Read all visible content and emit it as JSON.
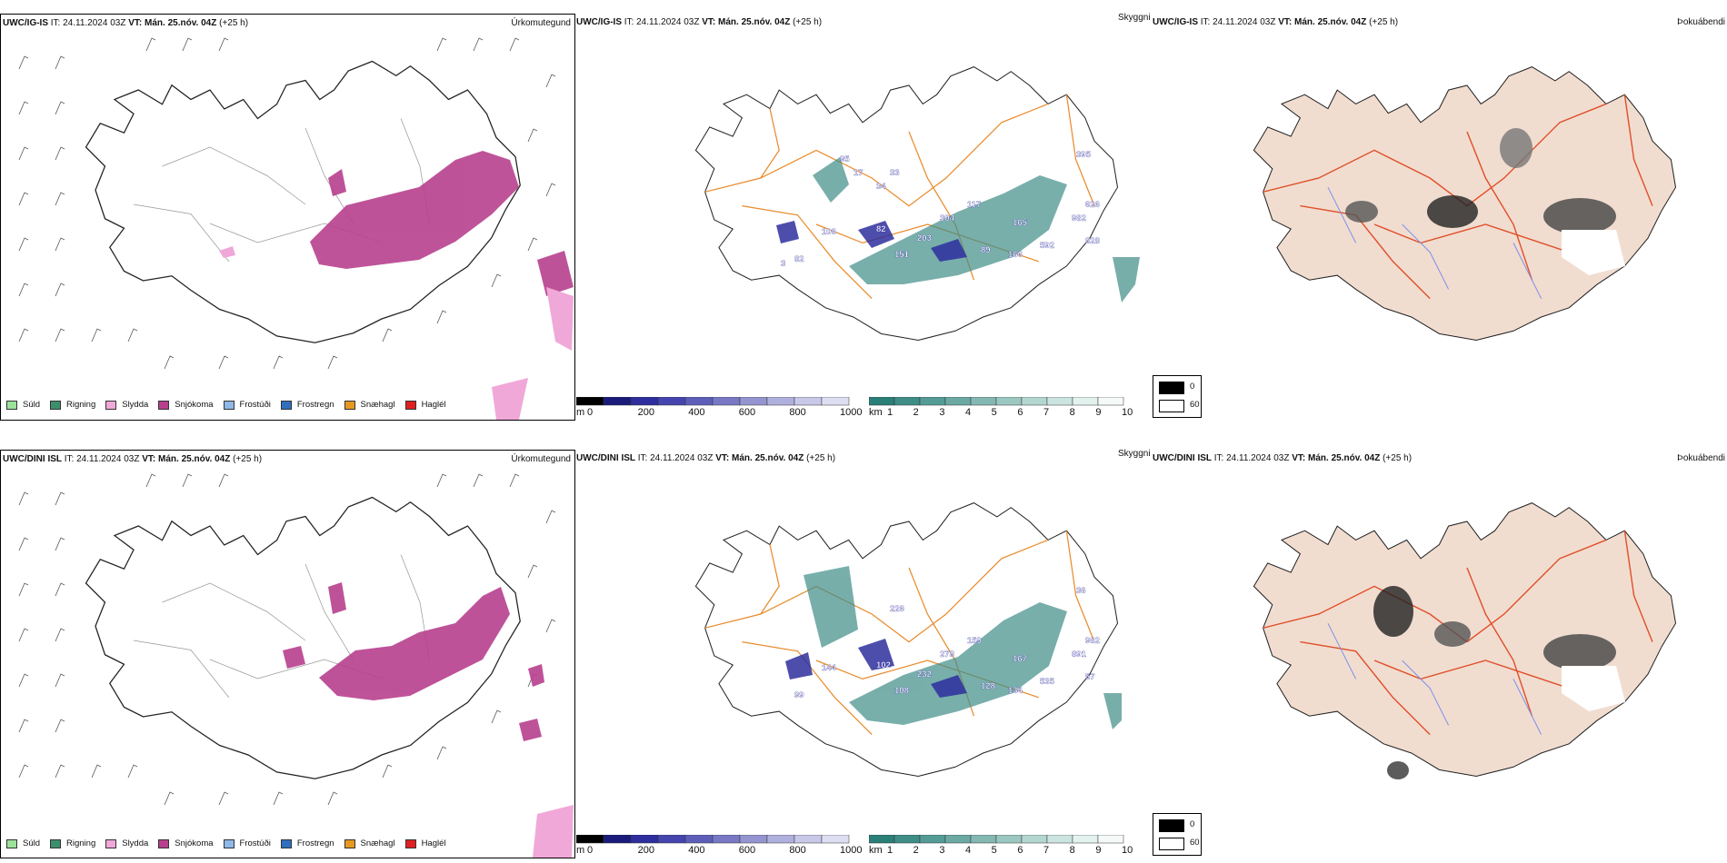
{
  "rows": [
    {
      "model": "UWC/IG-IS",
      "it_label": "IT:",
      "it": "24.11.2024 03Z",
      "vt_label": "VT:",
      "vt": "Mán. 25.nóv. 04Z",
      "lead": "(+25 h)",
      "precip_title": "Úrkomutegund",
      "ceiling_title": "Skyggni",
      "fog_title": "Þokuábendi",
      "ceiling_labels": [
        "82",
        "106",
        "82",
        "151",
        "203",
        "304",
        "117",
        "89",
        "166",
        "165",
        "592",
        "982",
        "626",
        "828",
        "395",
        "33",
        "34",
        "17",
        "95",
        "3"
      ]
    },
    {
      "model": "UWC/DINI ISL",
      "it_label": "IT:",
      "it": "24.11.2024 03Z",
      "vt_label": "VT:",
      "vt": "Mán. 25.nóv. 04Z",
      "lead": "(+25 h)",
      "precip_title": "Úrkomutegund",
      "ceiling_title": "Skyggni",
      "fog_title": "Þokuábendi",
      "ceiling_labels": [
        "99",
        "144",
        "102",
        "108",
        "232",
        "278",
        "159",
        "128",
        "134",
        "167",
        "535",
        "891",
        "982",
        "57",
        "36",
        "226"
      ]
    }
  ],
  "precip_legend": [
    {
      "label": "Súld",
      "color": "#9be39b"
    },
    {
      "label": "Rigning",
      "color": "#3d8f6b"
    },
    {
      "label": "Slydda",
      "color": "#f0a8d8"
    },
    {
      "label": "Snjókoma",
      "color": "#b8408e"
    },
    {
      "label": "Frostúði",
      "color": "#8fb8e8"
    },
    {
      "label": "Frostregn",
      "color": "#2f6fc0"
    },
    {
      "label": "Snæhagl",
      "color": "#e89a20"
    },
    {
      "label": "Haglél",
      "color": "#e02020"
    }
  ],
  "ceiling_bar": {
    "unit": "m",
    "ticks": [
      "0",
      "200",
      "400",
      "600",
      "800",
      "1000"
    ],
    "colors": [
      "#000000",
      "#1a1a7a",
      "#2e2e9e",
      "#4545b0",
      "#5e5eba",
      "#7878c4",
      "#9494d0",
      "#b0b0dc",
      "#c8c8e8",
      "#dedef2"
    ]
  },
  "visibility_bar": {
    "unit": "km",
    "ticks": [
      "1",
      "2",
      "3",
      "4",
      "5",
      "6",
      "7",
      "8",
      "9",
      "10"
    ],
    "colors": [
      "#2a8079",
      "#3f8d87",
      "#559b95",
      "#6ca9a3",
      "#84b8b2",
      "#9cc7c1",
      "#b4d6d1",
      "#cce4e0",
      "#e3f1ef",
      "#f5faf9"
    ]
  },
  "fog_legend": {
    "high": "0",
    "low": "60"
  }
}
